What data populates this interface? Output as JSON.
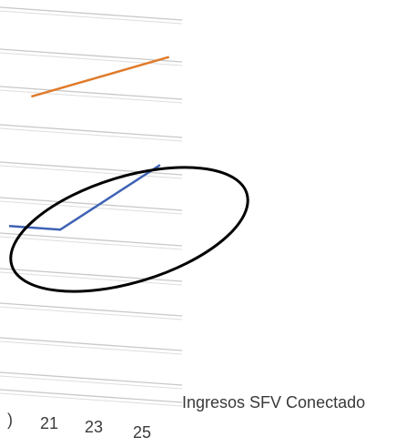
{
  "chart_data": {
    "type": "line",
    "perspective": "3d-skewed",
    "x_tick_labels": [
      "21",
      "23",
      "25"
    ],
    "partial_x_tick_label": ")",
    "grid": true,
    "series": [
      {
        "name": "",
        "color": "#e07b2a",
        "points": [
          {
            "x": 19.5,
            "y": 0.82
          },
          {
            "x": 25.7,
            "y": 0.93
          }
        ]
      },
      {
        "name": "Ingresos SFV Conectado",
        "color": "#3f63b5",
        "points": [
          {
            "x": 18.5,
            "y": 0.46
          },
          {
            "x": 20.8,
            "y": 0.45
          },
          {
            "x": 25.3,
            "y": 0.63
          }
        ]
      }
    ],
    "legend": {
      "label": "Ingresos SFV Conectado",
      "placement": "right"
    },
    "annotation": {
      "shape": "ellipse",
      "color": "#000000",
      "description": "black ellipse circling the blue series"
    }
  }
}
